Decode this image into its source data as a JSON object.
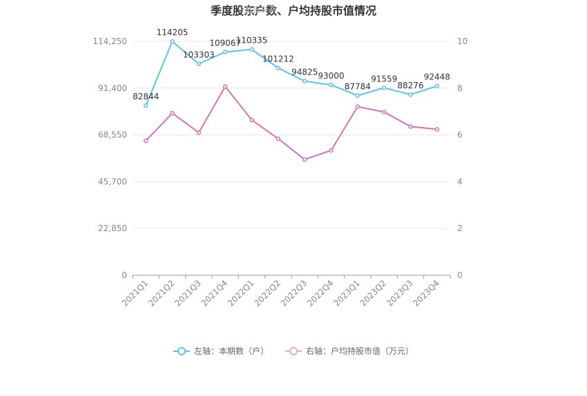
{
  "chart_data": {
    "type": "line",
    "title": "季度股东户数、户均持股市值情况",
    "watermark": "数据来源",
    "categories": [
      "2021Q1",
      "2021Q2",
      "2021Q3",
      "2021Q4",
      "2022Q1",
      "2022Q2",
      "2022Q3",
      "2022Q4",
      "2023Q1",
      "2023Q2",
      "2023Q3",
      "2023Q4"
    ],
    "y_left": {
      "min": 0,
      "max": 114250,
      "ticks": [
        "0",
        "22,850",
        "45,700",
        "68,550",
        "91,400",
        "114,250"
      ],
      "tick_values": [
        0,
        22850,
        45700,
        68550,
        91400,
        114250
      ]
    },
    "y_right": {
      "min": 0,
      "max": 10,
      "ticks": [
        "0",
        "2",
        "4",
        "6",
        "8",
        "10"
      ],
      "tick_values": [
        0,
        2,
        4,
        6,
        8,
        10
      ]
    },
    "series": [
      {
        "name": "左轴：本期数（户）",
        "axis": "left",
        "color": "#5bc0eb",
        "values": [
          82844,
          114205,
          103303,
          109067,
          110335,
          101212,
          94825,
          93000,
          87784,
          91559,
          88276,
          92448
        ],
        "labels": [
          "82844",
          "114205",
          "103303",
          "109067",
          "110335",
          "101212",
          "94825",
          "93000",
          "87784",
          "91559",
          "88276",
          "92448"
        ]
      },
      {
        "name": "右轴：户均持股市值（万元）",
        "axis": "right",
        "color": "#d670b8",
        "values": [
          5.75,
          6.93,
          6.1,
          8.07,
          6.64,
          5.84,
          4.95,
          5.34,
          7.21,
          6.98,
          6.36,
          6.24
        ]
      }
    ],
    "grid": true,
    "legend_position": "bottom-center"
  }
}
